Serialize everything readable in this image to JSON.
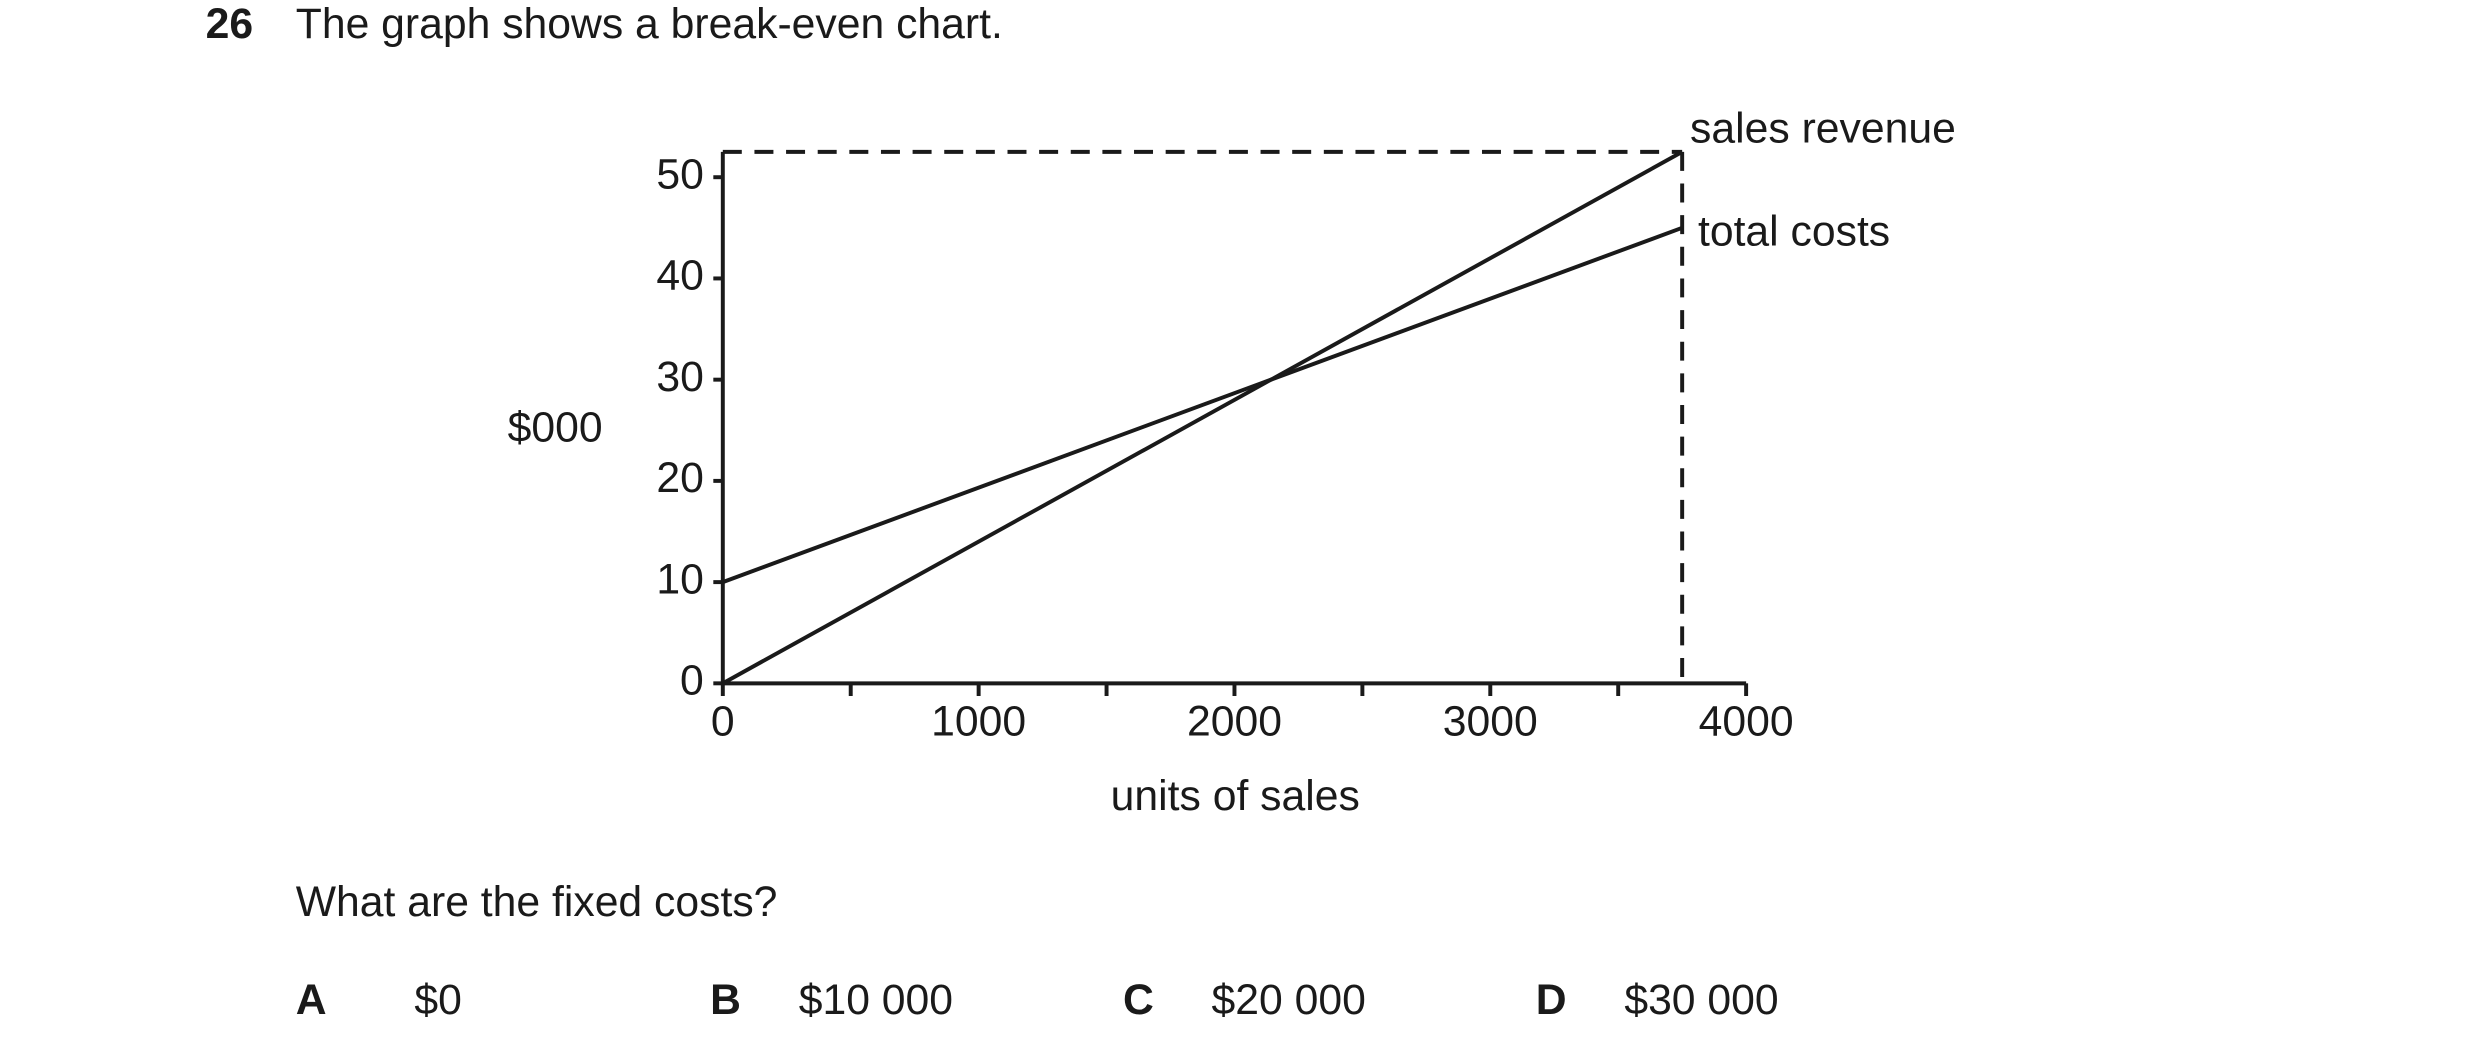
{
  "question": {
    "number": "26",
    "text": "The graph shows a break-even chart."
  },
  "chart_data": {
    "type": "line",
    "y_label": "$000",
    "x_label": "units of sales",
    "x": [
      0,
      3750
    ],
    "series": [
      {
        "name": "sales revenue",
        "color": "#222222",
        "values": [
          0,
          52.5
        ]
      },
      {
        "name": "total costs",
        "color": "#222222",
        "values": [
          10,
          45
        ]
      }
    ],
    "xlim": [
      0,
      4000
    ],
    "xticks": [
      0,
      1000,
      2000,
      3000,
      4000
    ],
    "xminorticks": [
      500,
      1500,
      2500,
      3500
    ],
    "ylim": [
      0,
      50
    ],
    "yticks": [
      0,
      10,
      20,
      30,
      40,
      50
    ],
    "grid": false
  },
  "prompt": "What are the fixed costs?",
  "options": [
    {
      "letter": "A",
      "text": "$0"
    },
    {
      "letter": "B",
      "text": "$10 000"
    },
    {
      "letter": "C",
      "text": "$20 000"
    },
    {
      "letter": "D",
      "text": "$30 000"
    }
  ]
}
